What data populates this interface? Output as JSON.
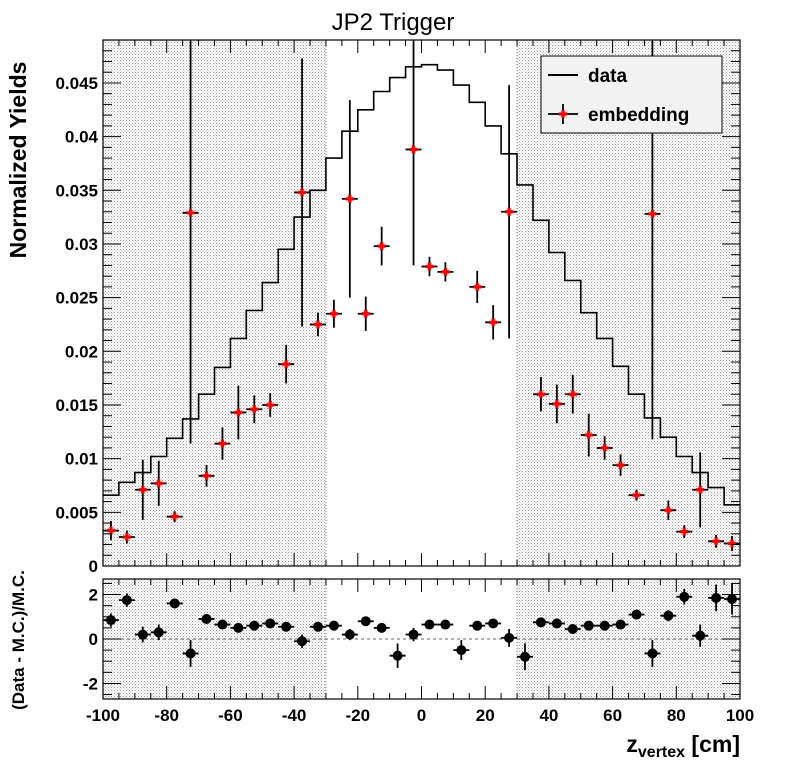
{
  "chart_data": [
    {
      "type": "line",
      "title": "JP2 Trigger",
      "xlabel": "",
      "ylabel": "Normalized Yields",
      "xlim": [
        -100,
        100
      ],
      "ylim": [
        0,
        0.049
      ],
      "xticks": [
        "-100",
        "-80",
        "-60",
        "-40",
        "-20",
        "0",
        "20",
        "40",
        "60",
        "80",
        "100"
      ],
      "yticks": [
        "0",
        "0.005",
        "0.01",
        "0.015",
        "0.02",
        "0.025",
        "0.03",
        "0.035",
        "0.04",
        "0.045"
      ],
      "shaded_regions": [
        [
          -100,
          -30
        ],
        [
          30,
          100
        ]
      ],
      "legend": {
        "position": "top-right",
        "entries": [
          "data",
          "embedding"
        ]
      },
      "colors": {
        "data": "#000000",
        "embedding": "#ff0000",
        "shade": "#a8a8a8"
      },
      "series": [
        {
          "name": "data",
          "style": "step",
          "bin_edges": [
            -100,
            -95,
            -90,
            -85,
            -80,
            -75,
            -70,
            -65,
            -60,
            -55,
            -50,
            -45,
            -40,
            -35,
            -30,
            -25,
            -20,
            -15,
            -10,
            -5,
            0,
            5,
            10,
            15,
            20,
            25,
            30,
            35,
            40,
            45,
            50,
            55,
            60,
            65,
            70,
            75,
            80,
            85,
            90,
            95,
            100
          ],
          "values": [
            0.0066,
            0.0078,
            0.0087,
            0.0102,
            0.0119,
            0.0137,
            0.016,
            0.0185,
            0.0212,
            0.0238,
            0.0264,
            0.0295,
            0.0325,
            0.035,
            0.038,
            0.0405,
            0.0425,
            0.0442,
            0.0455,
            0.0465,
            0.0467,
            0.0462,
            0.0448,
            0.0432,
            0.041,
            0.0384,
            0.0355,
            0.0322,
            0.0292,
            0.0266,
            0.0236,
            0.0212,
            0.0186,
            0.016,
            0.0138,
            0.012,
            0.0102,
            0.0087,
            0.0073,
            0.0057
          ]
        },
        {
          "name": "embedding",
          "style": "points",
          "x": [
            -97.5,
            -92.5,
            -87.5,
            -82.5,
            -77.5,
            -72.5,
            -67.5,
            -62.5,
            -57.5,
            -52.5,
            -47.5,
            -42.5,
            -37.5,
            -32.5,
            -27.5,
            -22.5,
            -17.5,
            -12.5,
            -7.5,
            -2.5,
            2.5,
            7.5,
            12.5,
            17.5,
            22.5,
            27.5,
            32.5,
            37.5,
            42.5,
            47.5,
            52.5,
            57.5,
            62.5,
            67.5,
            72.5,
            77.5,
            82.5,
            87.5,
            92.5,
            97.5
          ],
          "y": [
            0.0033,
            0.0027,
            0.0071,
            0.0077,
            0.0046,
            0.0329,
            0.0084,
            0.0114,
            0.0143,
            0.0146,
            0.015,
            0.0188,
            0.0348,
            0.0225,
            0.0235,
            0.0342,
            0.0235,
            0.0298,
            null,
            0.0388,
            0.0279,
            0.0274,
            null,
            0.026,
            0.0227,
            0.033,
            null,
            0.016,
            0.0151,
            0.016,
            0.0122,
            0.011,
            0.0094,
            0.0066,
            0.0328,
            0.0052,
            0.0032,
            0.0071,
            0.0023,
            0.0021
          ],
          "yerr": [
            0.0009,
            0.0006,
            0.0028,
            0.0021,
            0.0005,
            0.0215,
            0.001,
            0.0015,
            0.0025,
            0.0013,
            0.0011,
            0.0018,
            0.0125,
            0.0011,
            0.0013,
            0.0092,
            0.0016,
            0.0018,
            null,
            0.0108,
            0.0009,
            0.0009,
            null,
            0.0015,
            0.0016,
            0.0118,
            null,
            0.0016,
            0.0018,
            0.0018,
            0.002,
            0.0011,
            0.001,
            0.0005,
            0.021,
            0.0009,
            0.0006,
            0.0035,
            0.0006,
            0.0007
          ]
        }
      ]
    },
    {
      "type": "scatter",
      "title": "",
      "xlabel": "z_vertex [cm]",
      "xlabel_main": "z",
      "xlabel_sub": "vertex",
      "xlabel_unit": " [cm]",
      "ylabel": "(Data - M.C.)/M.C.",
      "xlim": [
        -100,
        100
      ],
      "ylim": [
        -2.7,
        2.7
      ],
      "xticks": [
        "-100",
        "-80",
        "-60",
        "-40",
        "-20",
        "0",
        "20",
        "40",
        "60",
        "80",
        "100"
      ],
      "yticks": [
        "-2",
        "0",
        "2"
      ],
      "reference_line": 0,
      "shaded_regions": [
        [
          -100,
          -30
        ],
        [
          30,
          100
        ]
      ],
      "colors": {
        "points": "#000000",
        "reference": "#555555"
      },
      "series": [
        {
          "style": "points",
          "x": [
            -97.5,
            -92.5,
            -87.5,
            -82.5,
            -77.5,
            -72.5,
            -67.5,
            -62.5,
            -57.5,
            -52.5,
            -47.5,
            -42.5,
            -37.5,
            -32.5,
            -27.5,
            -22.5,
            -17.5,
            -12.5,
            -7.5,
            -2.5,
            2.5,
            7.5,
            12.5,
            17.5,
            22.5,
            27.5,
            32.5,
            37.5,
            42.5,
            47.5,
            52.5,
            57.5,
            62.5,
            67.5,
            72.5,
            77.5,
            82.5,
            87.5,
            92.5,
            97.5
          ],
          "y": [
            0.85,
            1.75,
            0.2,
            0.3,
            1.6,
            -0.65,
            0.9,
            0.65,
            0.5,
            0.6,
            0.7,
            0.55,
            -0.1,
            0.55,
            0.6,
            0.2,
            0.8,
            0.5,
            -0.75,
            0.2,
            0.65,
            0.65,
            -0.5,
            0.6,
            0.7,
            0.05,
            -0.8,
            0.75,
            0.7,
            0.45,
            0.6,
            0.6,
            0.65,
            1.1,
            -0.65,
            1.05,
            1.9,
            0.15,
            1.85,
            1.8
          ],
          "yerr": [
            0.3,
            0.3,
            0.35,
            0.35,
            0.15,
            0.6,
            0.15,
            0.15,
            0.15,
            0.12,
            0.12,
            0.12,
            0.3,
            0.12,
            0.12,
            0.25,
            0.15,
            0.12,
            0.55,
            0.3,
            0.1,
            0.1,
            0.45,
            0.12,
            0.12,
            0.4,
            0.6,
            0.15,
            0.15,
            0.15,
            0.12,
            0.12,
            0.12,
            0.15,
            0.6,
            0.25,
            0.35,
            0.5,
            0.6,
            0.7
          ]
        }
      ]
    }
  ]
}
